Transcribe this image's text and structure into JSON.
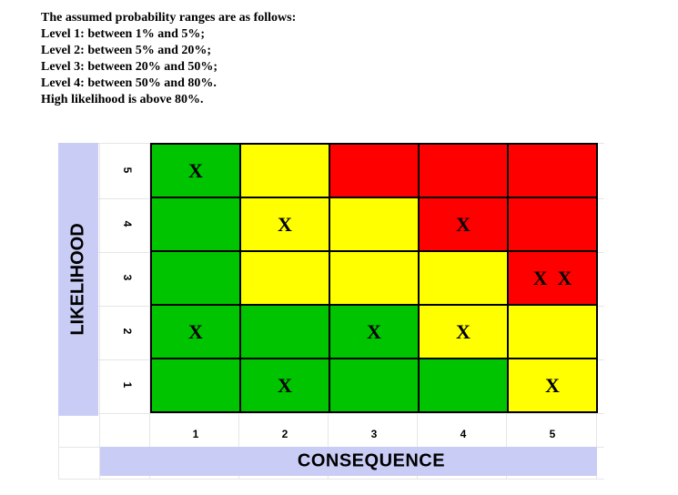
{
  "notes": {
    "line1": "The assumed probability ranges are as follows:",
    "line2": "Level 1: between 1% and 5%;",
    "line3": "Level 2: between 5% and 20%;",
    "line4": "Level 3: between 20% and 50%;",
    "line5": "Level 4: between 50% and 80%.",
    "line6": "High likelihood is above 80%."
  },
  "axes": {
    "y_label": "LIKELIHOOD",
    "x_label": "CONSEQUENCE",
    "y_ticks": [
      "5",
      "4",
      "3",
      "2",
      "1"
    ],
    "x_ticks": [
      "1",
      "2",
      "3",
      "4",
      "5"
    ]
  },
  "colors": {
    "green": "#00c400",
    "yellow": "#ffff00",
    "red": "#ff0000",
    "axis_band": "#c9cdf6"
  },
  "matrix": {
    "rows": [
      {
        "likelihood": "5",
        "cells": [
          {
            "color": "green",
            "mark": "X"
          },
          {
            "color": "yellow",
            "mark": ""
          },
          {
            "color": "red",
            "mark": ""
          },
          {
            "color": "red",
            "mark": ""
          },
          {
            "color": "red",
            "mark": ""
          }
        ]
      },
      {
        "likelihood": "4",
        "cells": [
          {
            "color": "green",
            "mark": ""
          },
          {
            "color": "yellow",
            "mark": "X"
          },
          {
            "color": "yellow",
            "mark": ""
          },
          {
            "color": "red",
            "mark": "X"
          },
          {
            "color": "red",
            "mark": ""
          }
        ]
      },
      {
        "likelihood": "3",
        "cells": [
          {
            "color": "green",
            "mark": ""
          },
          {
            "color": "yellow",
            "mark": ""
          },
          {
            "color": "yellow",
            "mark": ""
          },
          {
            "color": "yellow",
            "mark": ""
          },
          {
            "color": "red",
            "mark": "X  X"
          }
        ]
      },
      {
        "likelihood": "2",
        "cells": [
          {
            "color": "green",
            "mark": "X"
          },
          {
            "color": "green",
            "mark": ""
          },
          {
            "color": "green",
            "mark": "X"
          },
          {
            "color": "yellow",
            "mark": "X"
          },
          {
            "color": "yellow",
            "mark": ""
          }
        ]
      },
      {
        "likelihood": "1",
        "cells": [
          {
            "color": "green",
            "mark": ""
          },
          {
            "color": "green",
            "mark": "X"
          },
          {
            "color": "green",
            "mark": ""
          },
          {
            "color": "green",
            "mark": ""
          },
          {
            "color": "yellow",
            "mark": "X"
          }
        ]
      }
    ]
  }
}
